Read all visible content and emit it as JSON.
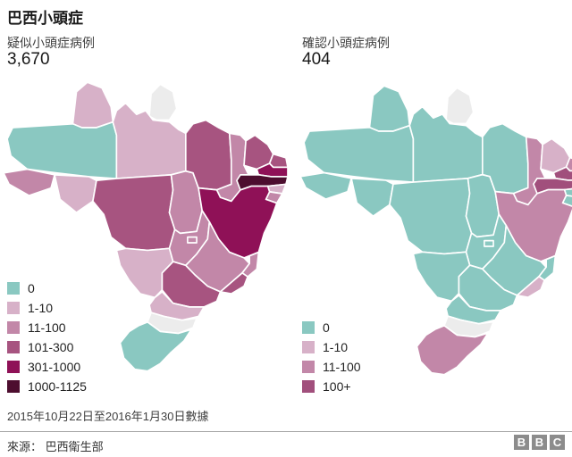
{
  "title": "巴西小頭症",
  "panels": [
    {
      "subtitle": "疑似小頭症病例",
      "total": "3,670"
    },
    {
      "subtitle": "確認小頭症病例",
      "total": "404"
    }
  ],
  "footnote": "2015年10月22日至2016年1月30日數據",
  "source": "來源： 巴西衛生部",
  "logo_letters": [
    "B",
    "B",
    "C"
  ],
  "palette": {
    "0": "#8ac8c1",
    "1-10": "#d7b1c8",
    "11-100": "#c287a8",
    "101-300": "#a75480",
    "301-1000": "#8f1157",
    "1000-1125": "#4d0e2f",
    "100+": "#a14f7c",
    "no-data": "#ececec"
  },
  "chart_data": [
    {
      "type": "choropleth",
      "title": "疑似小頭症病例",
      "region": "巴西",
      "total": 3670,
      "legend_buckets": [
        "0",
        "1-10",
        "11-100",
        "101-300",
        "301-1000",
        "1000-1125"
      ],
      "by_state": {
        "AC": "11-100",
        "AL": "1-10",
        "AM": "0",
        "AP": "no-data",
        "BA": "301-1000",
        "CE": "101-300",
        "DF": "11-100",
        "ES": "11-100",
        "GO": "11-100",
        "MA": "101-300",
        "MG": "11-100",
        "MS": "1-10",
        "MT": "101-300",
        "PA": "1-10",
        "PB": "301-1000",
        "PE": "1000-1125",
        "PI": "11-100",
        "PR": "1-10",
        "RJ": "101-300",
        "RN": "101-300",
        "RO": "1-10",
        "RR": "1-10",
        "RS": "0",
        "SC": "no-data",
        "SE": "11-100",
        "SP": "101-300",
        "TO": "11-100"
      }
    },
    {
      "type": "choropleth",
      "title": "確認小頭症病例",
      "region": "巴西",
      "total": 404,
      "legend_buckets": [
        "0",
        "1-10",
        "11-100",
        "100+"
      ],
      "by_state": {
        "AC": "0",
        "AL": "0",
        "AM": "0",
        "AP": "no-data",
        "BA": "11-100",
        "CE": "1-10",
        "DF": "0",
        "ES": "0",
        "GO": "0",
        "MA": "0",
        "MG": "0",
        "MS": "0",
        "MT": "0",
        "PA": "0",
        "PB": "100+",
        "PE": "100+",
        "PI": "11-100",
        "PR": "0",
        "RJ": "1-10",
        "RN": "11-100",
        "RO": "0",
        "RR": "0",
        "RS": "11-100",
        "SC": "no-data",
        "SE": "0",
        "SP": "0",
        "TO": "0"
      }
    }
  ]
}
